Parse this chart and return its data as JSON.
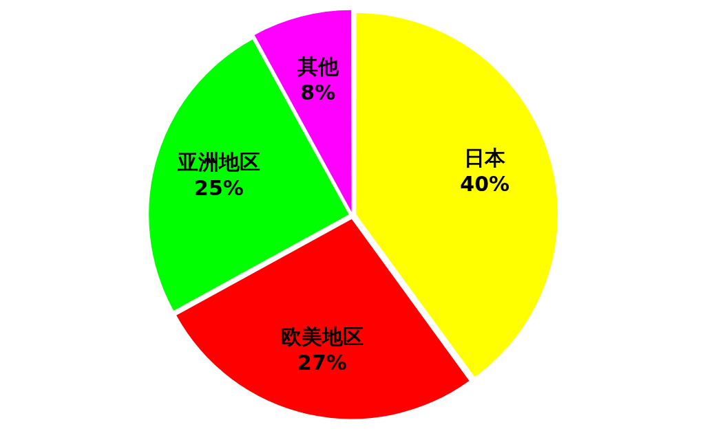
{
  "chart_data": {
    "type": "pie",
    "categories": [
      "日本",
      "欧美地区",
      "亚洲地区",
      "其他"
    ],
    "values": [
      40,
      27,
      25,
      8
    ],
    "colors": [
      "#ffff00",
      "#ff0000",
      "#00ff00",
      "#ff00ff"
    ],
    "value_labels": [
      "40%",
      "27%",
      "25%",
      "8%"
    ]
  }
}
